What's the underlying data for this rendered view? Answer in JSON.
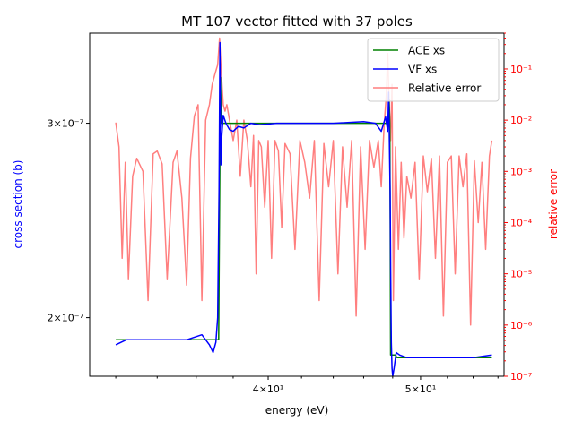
{
  "chart_data": {
    "type": "line",
    "title": "MT 107 vector fitted with 37 poles",
    "xlabel": "energy (eV)",
    "ylabel_left": "cross section (b)",
    "ylabel_right": "relative error",
    "xscale": "log",
    "yscale_left": "log",
    "yscale_right": "log",
    "xlim": [
      30.8,
      56.5
    ],
    "ylim_left": [
      1.77e-07,
      3.62e-07
    ],
    "ylim_right": [
      1e-07,
      0.5
    ],
    "x_ticks": [
      {
        "value": 40,
        "label": "4×10¹"
      },
      {
        "value": 50,
        "label": "5×10¹"
      }
    ],
    "y_left_ticks": [
      {
        "value": 2e-07,
        "label": "2×10⁻⁷"
      },
      {
        "value": 3e-07,
        "label": "3×10⁻⁷"
      }
    ],
    "y_right_ticks": [
      {
        "value": 1e-07,
        "label": "10⁻⁷"
      },
      {
        "value": 1e-06,
        "label": "10⁻⁶"
      },
      {
        "value": 1e-05,
        "label": "10⁻⁵"
      },
      {
        "value": 0.0001,
        "label": "10⁻⁴"
      },
      {
        "value": 0.001,
        "label": "10⁻³"
      },
      {
        "value": 0.01,
        "label": "10⁻²"
      },
      {
        "value": 0.1,
        "label": "10⁻¹"
      }
    ],
    "legend": "top-right",
    "colors": {
      "ace": "#008000",
      "vf": "#0000ff",
      "err": "#ff7f7f",
      "right_axis": "#ff0000",
      "left_label": "#0000ff"
    },
    "series": [
      {
        "name": "ACE xs",
        "axis": "left",
        "x": [
          32.0,
          37.2,
          37.3,
          37.35,
          37.4,
          47.7,
          47.75,
          47.8,
          47.85,
          48.2,
          48.3,
          55.5
        ],
        "y": [
          1.91e-07,
          1.91e-07,
          3.3e-07,
          3e-07,
          3e-07,
          3e-07,
          3.15e-07,
          3e-07,
          1.85e-07,
          1.85e-07,
          1.84e-07,
          1.84e-07
        ]
      },
      {
        "name": "VF xs",
        "axis": "left",
        "x": [
          32.0,
          32.5,
          33.5,
          34.5,
          35.5,
          36.3,
          36.7,
          36.9,
          37.05,
          37.15,
          37.22,
          37.27,
          37.32,
          37.36,
          37.45,
          37.6,
          37.8,
          38.0,
          38.3,
          38.6,
          39.0,
          39.5,
          40.5,
          42.0,
          44.0,
          46.0,
          46.8,
          47.2,
          47.5,
          47.65,
          47.72,
          47.78,
          47.82,
          47.86,
          47.9,
          47.95,
          48.0,
          48.1,
          48.25,
          48.5,
          49.0,
          50.0,
          52.0,
          54.0,
          55.5
        ],
        "y": [
          1.89e-07,
          1.91e-07,
          1.91e-07,
          1.91e-07,
          1.91e-07,
          1.93e-07,
          1.89e-07,
          1.86e-07,
          1.9e-07,
          2e-07,
          2.6e-07,
          3.55e-07,
          2.75e-07,
          2.9e-07,
          3.05e-07,
          3e-07,
          2.96e-07,
          2.95e-07,
          2.98e-07,
          2.97e-07,
          3e-07,
          2.99e-07,
          3e-07,
          3e-07,
          3e-07,
          3.01e-07,
          3e-07,
          2.95e-07,
          3.04e-07,
          2.95e-07,
          3.2e-07,
          2.8e-07,
          2.6e-07,
          2.2e-07,
          1.9e-07,
          1.8e-07,
          1.77e-07,
          1.8e-07,
          1.86e-07,
          1.85e-07,
          1.84e-07,
          1.84e-07,
          1.84e-07,
          1.84e-07,
          1.85e-07
        ]
      },
      {
        "name": "Relative error",
        "axis": "right",
        "x": [
          32.0,
          32.15,
          32.3,
          32.45,
          32.6,
          32.8,
          33.0,
          33.3,
          33.55,
          33.8,
          34.0,
          34.25,
          34.5,
          34.8,
          35.0,
          35.25,
          35.5,
          35.7,
          35.9,
          36.1,
          36.3,
          36.5,
          36.7,
          36.85,
          37.0,
          37.15,
          37.25,
          37.35,
          37.45,
          37.55,
          37.65,
          37.8,
          38.0,
          38.2,
          38.4,
          38.6,
          38.8,
          39.0,
          39.15,
          39.3,
          39.45,
          39.6,
          39.8,
          40.0,
          40.2,
          40.4,
          40.6,
          40.8,
          41.0,
          41.3,
          41.6,
          41.9,
          42.2,
          42.5,
          42.8,
          43.1,
          43.4,
          43.7,
          44.0,
          44.3,
          44.6,
          44.9,
          45.2,
          45.5,
          45.8,
          46.1,
          46.4,
          46.7,
          47.0,
          47.2,
          47.4,
          47.55,
          47.65,
          47.75,
          47.85,
          47.95,
          48.05,
          48.2,
          48.4,
          48.6,
          48.8,
          49.0,
          49.3,
          49.6,
          49.9,
          50.2,
          50.5,
          50.8,
          51.1,
          51.4,
          51.7,
          52.0,
          52.3,
          52.6,
          52.9,
          53.2,
          53.5,
          53.8,
          54.1,
          54.4,
          54.7,
          55.0,
          55.3,
          55.5
        ],
        "y": [
          0.009,
          0.003,
          2e-05,
          0.0015,
          8e-06,
          0.0008,
          0.0018,
          0.001,
          3e-06,
          0.0022,
          0.0025,
          0.0014,
          8e-06,
          0.0015,
          0.0025,
          0.0003,
          6e-06,
          0.0018,
          0.012,
          0.02,
          3e-06,
          0.01,
          0.02,
          0.05,
          0.08,
          0.12,
          0.4,
          0.08,
          0.02,
          0.015,
          0.02,
          0.01,
          0.004,
          0.01,
          0.0008,
          0.01,
          0.004,
          0.0005,
          0.005,
          1e-05,
          0.004,
          0.003,
          0.0002,
          0.004,
          2e-05,
          0.004,
          0.0025,
          8e-05,
          0.0035,
          0.0022,
          3e-05,
          0.004,
          0.0015,
          0.0003,
          0.004,
          3e-06,
          0.0035,
          0.0005,
          0.004,
          1e-05,
          0.003,
          0.0002,
          0.004,
          1.5e-06,
          0.003,
          3e-05,
          0.004,
          0.0012,
          0.004,
          0.0005,
          0.008,
          0.03,
          0.2,
          0.02,
          0.004,
          0.05,
          3e-06,
          0.003,
          3e-05,
          0.0015,
          5e-05,
          0.0008,
          0.0003,
          0.0015,
          8e-06,
          0.002,
          0.0004,
          0.0018,
          2e-05,
          0.002,
          1.5e-06,
          0.0015,
          0.002,
          1e-05,
          0.002,
          0.0005,
          0.0022,
          1e-06,
          0.0016,
          0.0001,
          0.0015,
          3e-05,
          0.002,
          0.004
        ]
      }
    ]
  }
}
